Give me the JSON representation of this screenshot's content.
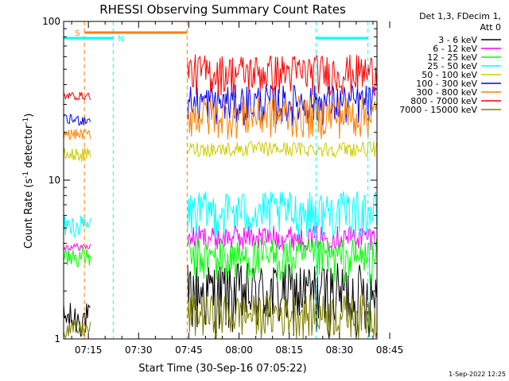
{
  "chart_data": {
    "type": "line",
    "title": "RHESSI Observing Summary Count Rates",
    "xlabel": "Start Time (30-Sep-16 07:05:22)",
    "ylabel_prefix": "Count Rate (s",
    "ylabel_sup1": "-1",
    "ylabel_mid": " detector",
    "ylabel_sup2": "-1",
    "ylabel_suffix": ")",
    "y_scale": "log",
    "ylim": [
      1,
      100
    ],
    "y_tick_labels": [
      "1",
      "10",
      "100"
    ],
    "xlim_minutes": [
      7.6,
      101.2
    ],
    "x_ticks": [
      {
        "label": "07:15",
        "min": 15
      },
      {
        "label": "07:30",
        "min": 30
      },
      {
        "label": "07:45",
        "min": 45
      },
      {
        "label": "08:00",
        "min": 60
      },
      {
        "label": "08:15",
        "min": 75
      },
      {
        "label": "08:30",
        "min": 90
      },
      {
        "label": "08:45",
        "min": 105
      }
    ],
    "legend_header": [
      "Det 1,3, FDecim 1,",
      "Att 0"
    ],
    "legend_placement": "right",
    "series": [
      {
        "name": "3 - 6 keV",
        "color": "#000000",
        "pre": [
          1.0,
          1.7
        ],
        "post": [
          1.0,
          3.0
        ]
      },
      {
        "name": "6 - 12 keV",
        "color": "#ff00ff",
        "pre": [
          3.6,
          4.0
        ],
        "post": [
          3.6,
          5.2
        ]
      },
      {
        "name": "12 - 25 keV",
        "color": "#00ff00",
        "pre": [
          2.8,
          3.8
        ],
        "post": [
          2.2,
          4.3
        ]
      },
      {
        "name": "25 - 50 keV",
        "color": "#00ffff",
        "pre": [
          4.3,
          6.0
        ],
        "post": [
          4.3,
          8.5
        ]
      },
      {
        "name": "50 - 100 keV",
        "color": "#cccc00",
        "pre": [
          13,
          16
        ],
        "post": [
          14,
          17.5
        ]
      },
      {
        "name": "100 - 300 keV",
        "color": "#0000ff",
        "pre": [
          22,
          26
        ],
        "post": [
          22,
          40
        ]
      },
      {
        "name": "300 - 800 keV",
        "color": "#ff8000",
        "pre": [
          18,
          21
        ],
        "post": [
          18,
          34
        ]
      },
      {
        "name": "800 - 7000 keV",
        "color": "#ff0000",
        "pre": [
          32,
          36
        ],
        "post": [
          34,
          62
        ]
      },
      {
        "name": "7000 - 15000 keV",
        "color": "#808000",
        "pre": [
          1.0,
          1.3
        ],
        "post": [
          1.0,
          1.9
        ]
      }
    ],
    "flags": [
      {
        "label": "S",
        "color": "#ff8000",
        "x_start": 13.8,
        "x_end": 44.5
      },
      {
        "label": "N",
        "color": "#00ffff",
        "x_start": 7.6,
        "x_end": 22.4
      },
      {
        "label": "",
        "color": "#00ffff",
        "x_start": 83.0,
        "x_end": 98.5
      }
    ],
    "vertical_markers": [
      {
        "min": 13.8,
        "color": "#ff8000"
      },
      {
        "min": 22.4,
        "color": "#00ffff"
      },
      {
        "min": 44.5,
        "color": "#ff8000"
      },
      {
        "min": 83.0,
        "color": "#00ffff"
      },
      {
        "min": 98.5,
        "color": "#00ffff"
      }
    ],
    "data_gap_minutes": [
      15.6,
      44.5
    ],
    "grid": false
  },
  "timestamp": "1-Sep-2022 12:25"
}
